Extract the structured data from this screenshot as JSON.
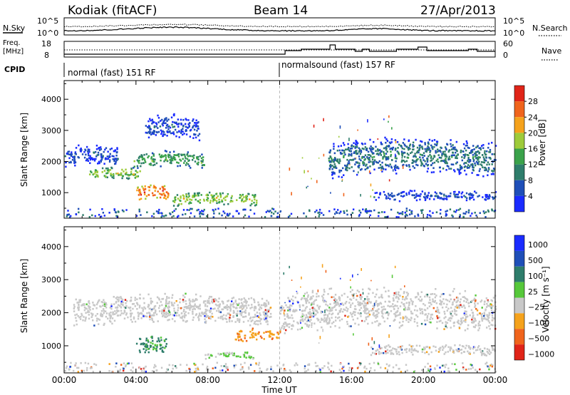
{
  "header": {
    "station": "Kodiak (fitACF)",
    "beam": "Beam 14",
    "date": "27/Apr/2013"
  },
  "noise_panel": {
    "left_label": "N.Sky",
    "right_label": "N.Search",
    "left_ticks": [
      "10^5",
      "10^0"
    ],
    "right_ticks": [
      "10^5",
      "10^0"
    ]
  },
  "freq_panel": {
    "left_label_1": "Freq.",
    "left_label_2": "[MHz]",
    "right_label": "Nave",
    "left_ticks": [
      "18",
      "8"
    ],
    "right_ticks": [
      "60",
      "0"
    ]
  },
  "cpid": {
    "label": "CPID",
    "segments": [
      {
        "text": "normal (fast) 151 RF",
        "start_hour": 0
      },
      {
        "text": "normalsound (fast) 157 RF",
        "start_hour": 12
      }
    ]
  },
  "chart_data": [
    {
      "type": "heatmap",
      "quantity": "Power",
      "ylabel": "Slant Range [km]",
      "ylim": [
        180,
        4600
      ],
      "yticks": [
        "1000",
        "2000",
        "3000",
        "4000"
      ],
      "xlim": [
        0,
        24
      ],
      "colorbar": {
        "label": "Power [dB]",
        "range": [
          0,
          32
        ],
        "tick_values": [
          4,
          8,
          12,
          16,
          20,
          24,
          28
        ],
        "tick_labels": [
          "4",
          "8",
          "12",
          "16",
          "20",
          "24",
          "28"
        ],
        "colors": [
          "#1a2bff",
          "#1f4fb8",
          "#2e7d6b",
          "#3aa24a",
          "#9ecb3a",
          "#f5a21c",
          "#f0641c",
          "#e02418"
        ]
      },
      "scatter_regions": [
        {
          "t": [
            0.0,
            3.0
          ],
          "r": [
            1750,
            2450
          ],
          "level": "mid-low"
        },
        {
          "t": [
            1.3,
            4.2
          ],
          "r": [
            1350,
            1750
          ],
          "level": "high"
        },
        {
          "t": [
            3.8,
            7.8
          ],
          "r": [
            1700,
            2250
          ],
          "level": "mid"
        },
        {
          "t": [
            4.0,
            5.8
          ],
          "r": [
            650,
            1200
          ],
          "level": "very-high"
        },
        {
          "t": [
            6.0,
            10.8
          ],
          "r": [
            500,
            950
          ],
          "level": "mid-high"
        },
        {
          "t": [
            4.5,
            7.5
          ],
          "r": [
            2600,
            3400
          ],
          "level": "low"
        },
        {
          "t": [
            14.7,
            24.0
          ],
          "r": [
            1400,
            2600
          ],
          "level": "low-mid"
        },
        {
          "t": [
            17.2,
            24.0
          ],
          "r": [
            650,
            1000
          ],
          "level": "low"
        }
      ]
    },
    {
      "type": "heatmap",
      "quantity": "Velocity",
      "ylabel": "Slant Range [km]",
      "ylim": [
        180,
        4600
      ],
      "yticks": [
        "1000",
        "2000",
        "3000",
        "4000"
      ],
      "xlim": [
        0,
        24
      ],
      "colorbar": {
        "label": "Velocity [m s⁻¹]",
        "tick_labels": [
          "1000",
          "500",
          "100",
          "25",
          "−25",
          "−100",
          "−500",
          "−1000"
        ],
        "colors": [
          "#1a2bff",
          "#1f4fb8",
          "#2e7d6b",
          "#56c83a",
          "#c8c8c8",
          "#f5a21c",
          "#f0641c",
          "#e02418"
        ]
      },
      "scatter_regions": [
        {
          "t": [
            0.5,
            11.5
          ],
          "r": [
            1500,
            2450
          ],
          "vel": "ground-scatter"
        },
        {
          "t": [
            4.0,
            5.7
          ],
          "r": [
            650,
            1250
          ],
          "vel": "positive-100"
        },
        {
          "t": [
            7.8,
            10.5
          ],
          "r": [
            550,
            800
          ],
          "vel": "positive-25"
        },
        {
          "t": [
            9.5,
            12.0
          ],
          "r": [
            1050,
            1450
          ],
          "vel": "negative-100"
        },
        {
          "t": [
            12.0,
            24.0
          ],
          "r": [
            1300,
            2600
          ],
          "vel": "ground-scatter"
        },
        {
          "t": [
            17.0,
            24.0
          ],
          "r": [
            650,
            1000
          ],
          "vel": "ground-scatter"
        }
      ]
    }
  ],
  "xaxis": {
    "ticks": [
      "00:00",
      "04:00",
      "08:00",
      "12:00",
      "16:00",
      "20:00",
      "00:00"
    ],
    "label": "Time UT"
  },
  "colors": {
    "axis": "#000000",
    "boundary_line": "#bbbbbb"
  }
}
